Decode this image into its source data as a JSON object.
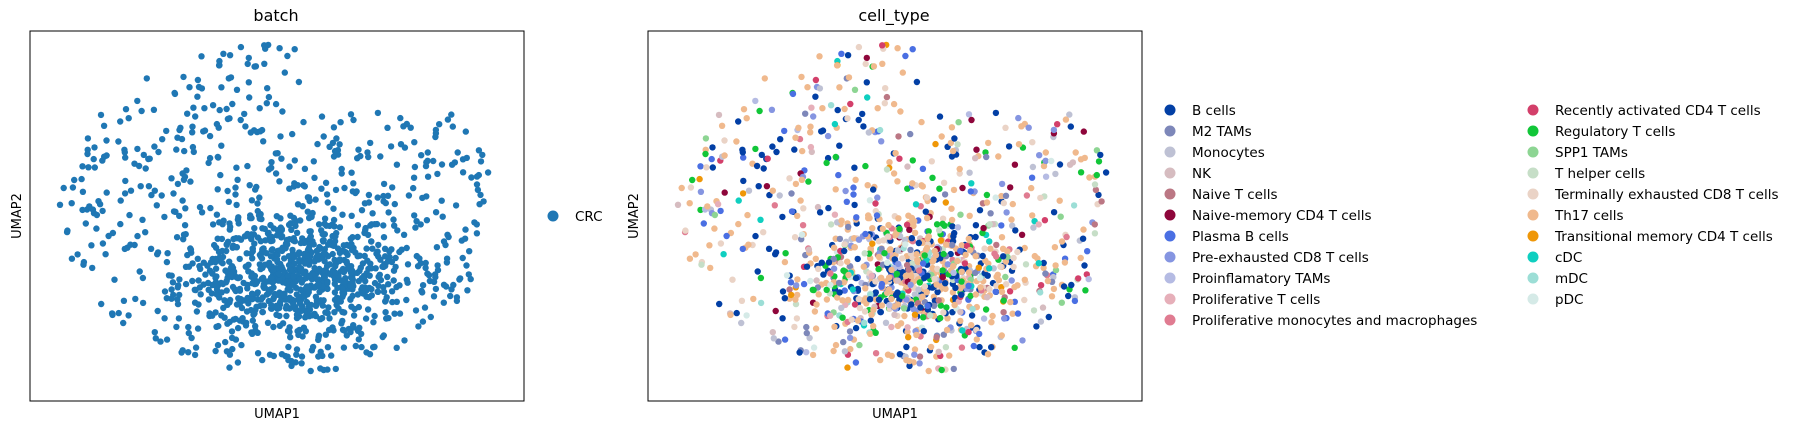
{
  "chart_data": [
    {
      "type": "scatter",
      "title": "batch",
      "xlabel": "UMAP1",
      "ylabel": "UMAP2",
      "xticks": false,
      "yticks": false,
      "grid": false,
      "legend_placement": "right",
      "point_color": "#1f77b4",
      "legend": [
        {
          "label": "CRC",
          "color": "#1f77b4"
        }
      ],
      "series": [
        {
          "name": "CRC",
          "color": "#1f77b4",
          "points": []
        }
      ]
    },
    {
      "type": "scatter",
      "title": "cell_type",
      "xlabel": "UMAP1",
      "ylabel": "UMAP2",
      "xticks": false,
      "yticks": false,
      "grid": false,
      "legend_placement": "right, two columns",
      "legend": [
        {
          "label": "B cells",
          "color": "#023fa5"
        },
        {
          "label": "M2 TAMs",
          "color": "#7d87b9"
        },
        {
          "label": "Monocytes",
          "color": "#bec1d4"
        },
        {
          "label": "NK",
          "color": "#d6bcc0"
        },
        {
          "label": "Naive T cells",
          "color": "#bb7784"
        },
        {
          "label": "Naive-memory CD4 T cells",
          "color": "#8e063b"
        },
        {
          "label": "Plasma B cells",
          "color": "#4a6fe3"
        },
        {
          "label": "Pre-exhausted CD8 T cells",
          "color": "#8595e1"
        },
        {
          "label": "Proinflamatory TAMs",
          "color": "#b5bbe3"
        },
        {
          "label": "Proliferative T cells",
          "color": "#e6afb9"
        },
        {
          "label": "Proliferative monocytes and macrophages",
          "color": "#e07b91"
        },
        {
          "label": "Recently activated CD4 T cells",
          "color": "#d33f6a"
        },
        {
          "label": "Regulatory T cells",
          "color": "#11c638"
        },
        {
          "label": "SPP1 TAMs",
          "color": "#8dd593"
        },
        {
          "label": "T helper cells",
          "color": "#c6dec7"
        },
        {
          "label": "Terminally exhausted CD8 T cells",
          "color": "#ead3c6"
        },
        {
          "label": "Th17 cells",
          "color": "#f0b98d"
        },
        {
          "label": "Transitional memory CD4 T cells",
          "color": "#ef9708"
        },
        {
          "label": "cDC",
          "color": "#0fcfc0"
        },
        {
          "label": "mDC",
          "color": "#9cded6"
        },
        {
          "label": "pDC",
          "color": "#d5eae7"
        }
      ]
    }
  ]
}
